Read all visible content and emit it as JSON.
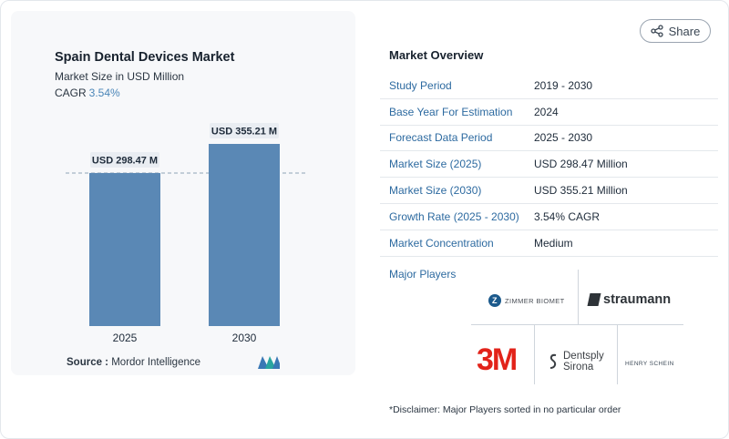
{
  "chart_data": {
    "type": "bar",
    "title": "Spain Dental Devices Market",
    "subtitle": "Market Size in USD Million",
    "cagr_label": "CAGR",
    "cagr_value": "3.54%",
    "categories": [
      "2025",
      "2030"
    ],
    "values": [
      298.47,
      355.21
    ],
    "value_labels": [
      "USD 298.47 M",
      "USD 355.21 M"
    ],
    "bar_color": "#5a88b5",
    "reference_line": 298.47
  },
  "source": {
    "label": "Source :",
    "text": "Mordor Intelligence"
  },
  "share": {
    "label": "Share",
    "icon": "share-icon"
  },
  "overview": {
    "title": "Market Overview",
    "rows": [
      {
        "key": "Study Period",
        "value": "2019 - 2030"
      },
      {
        "key": "Base Year For Estimation",
        "value": "2024"
      },
      {
        "key": "Forecast Data Period",
        "value": "2025 - 2030"
      },
      {
        "key": "Market Size (2025)",
        "value": "USD 298.47 Million"
      },
      {
        "key": "Market Size (2030)",
        "value": "USD 355.21 Million"
      },
      {
        "key": "Growth Rate (2025 - 2030)",
        "value": "3.54% CAGR"
      },
      {
        "key": "Market Concentration",
        "value": "Medium"
      }
    ]
  },
  "players": {
    "title": "Major Players",
    "zimmer": "ZIMMER BIOMET",
    "straumann": "straumann",
    "three_m": "3M",
    "dentsply_line1": "Dentsply",
    "dentsply_line2": "Sirona",
    "henry": "HENRY SCHEIN"
  },
  "disclaimer": "*Disclaimer: Major Players sorted in no particular order",
  "colors": {
    "accent": "#2d6aa0",
    "bar": "#5a88b5",
    "three_m": "#e2231a"
  }
}
